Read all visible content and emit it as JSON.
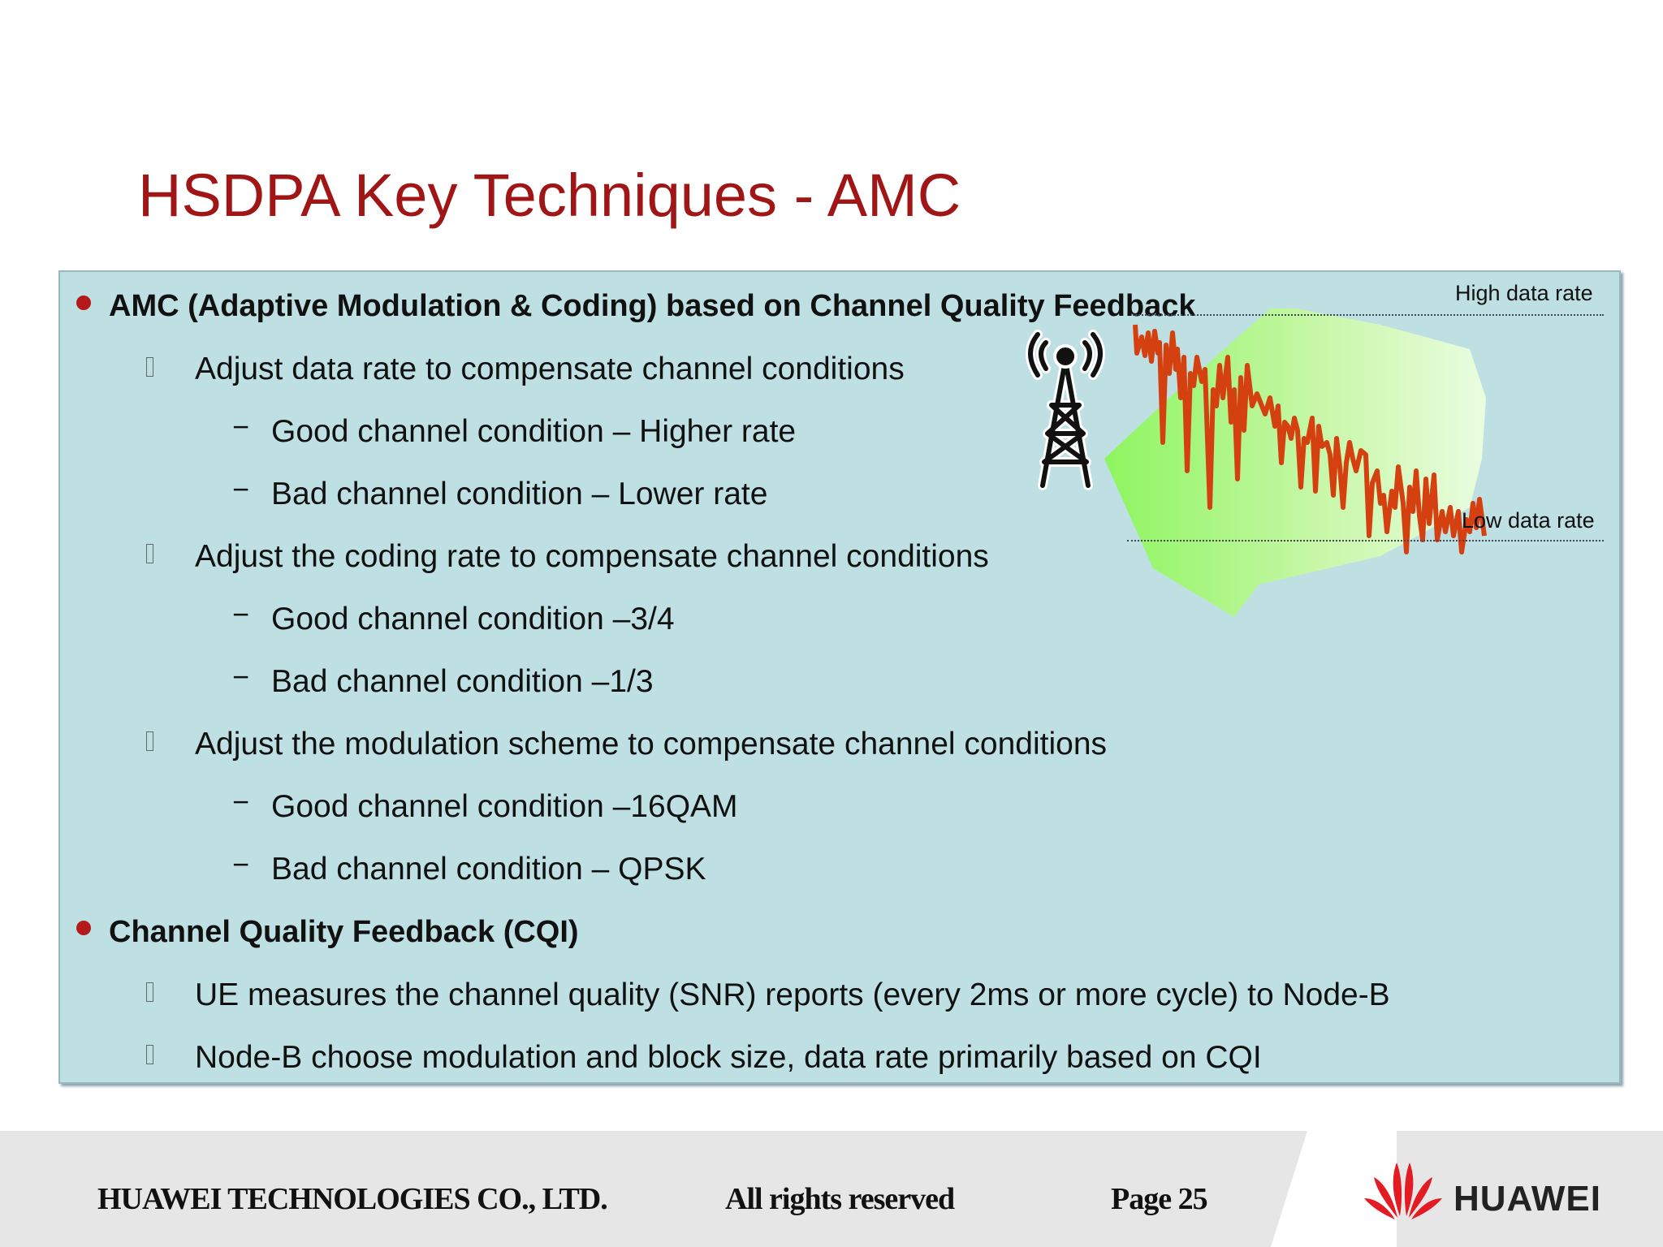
{
  "slide": {
    "title": "HSDPA Key Techniques - AMC"
  },
  "content": {
    "items": [
      {
        "level": 1,
        "text": "AMC (Adaptive Modulation & Coding) based on Channel Quality Feedback"
      },
      {
        "level": 2,
        "text": "Adjust data rate to compensate channel conditions"
      },
      {
        "level": 3,
        "text": "Good channel condition – Higher rate"
      },
      {
        "level": 3,
        "text": "Bad channel condition – Lower rate"
      },
      {
        "level": 2,
        "text": "Adjust the coding rate to compensate channel conditions"
      },
      {
        "level": 3,
        "text": "Good channel condition –3/4"
      },
      {
        "level": 3,
        "text": "Bad channel condition –1/3"
      },
      {
        "level": 2,
        "text": "Adjust the modulation scheme to compensate channel conditions"
      },
      {
        "level": 3,
        "text": "Good channel condition –16QAM"
      },
      {
        "level": 3,
        "text": "Bad channel condition – QPSK"
      },
      {
        "level": 1,
        "text": "Channel Quality Feedback (CQI)"
      },
      {
        "level": 2,
        "text": "UE measures  the channel quality (SNR) reports (every 2ms or more cycle) to Node-B"
      },
      {
        "level": 2,
        "text": "Node-B choose modulation and block size, data rate primarily based on CQI"
      }
    ]
  },
  "diagram": {
    "high_label": "High data rate",
    "low_label": "Low data rate",
    "signal_color": "#d44010",
    "coverage_color": "#9cf26a"
  },
  "footer": {
    "company": "HUAWEI TECHNOLOGIES CO., LTD.",
    "rights": "All rights reserved",
    "page": "Page 25",
    "logo_text": "HUAWEI"
  },
  "colors": {
    "title": "#a01515",
    "panel": "#bee0e3",
    "bullet": "#b51a1a"
  }
}
